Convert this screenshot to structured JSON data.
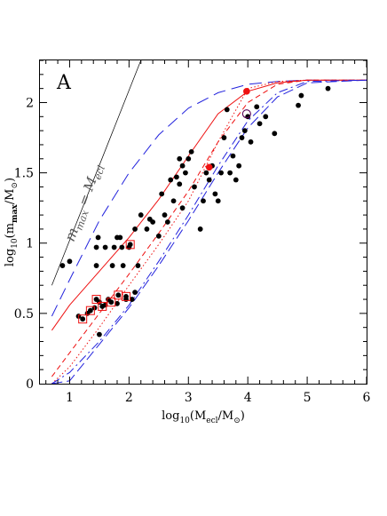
{
  "chart_data": {
    "type": "scatter",
    "panel_label": "A",
    "xlim": [
      0.5,
      6
    ],
    "ylim": [
      0,
      2.3
    ],
    "x_ticks": [
      1,
      2,
      3,
      4,
      5,
      6
    ],
    "y_ticks": [
      0,
      0.5,
      1,
      1.5,
      2
    ],
    "x_tick_labels": [
      "1",
      "2",
      "3",
      "4",
      "5",
      "6"
    ],
    "y_tick_labels": [
      "0",
      "0.5",
      "1",
      "1.5",
      "2"
    ],
    "xlabel": {
      "pre": "log",
      "sub1": "10",
      "mid": "(M",
      "sub2": "ecl",
      "post": "/M",
      "sun": "⊙",
      "close": ")"
    },
    "ylabel": {
      "pre": "log",
      "sub1": "10",
      "mid": "(m",
      "sub2": "max",
      "post": "/M",
      "sun": "⊙",
      "close": ")"
    },
    "annotation": {
      "main": "m",
      "sub1": "max",
      "eq": " = M",
      "sub2": "ecl",
      "x": 1.2,
      "y": 1.42
    },
    "colors": {
      "blue": "#2222dd",
      "red": "#ee1111",
      "black": "#000000",
      "ann": "#555555"
    },
    "points": [
      [
        0.88,
        0.84
      ],
      [
        1.0,
        0.87
      ],
      [
        1.15,
        0.48
      ],
      [
        1.22,
        0.46
      ],
      [
        1.3,
        0.5
      ],
      [
        1.35,
        0.52
      ],
      [
        1.42,
        0.54
      ],
      [
        1.45,
        0.6
      ],
      [
        1.5,
        0.35
      ],
      [
        1.45,
        0.84
      ],
      [
        1.45,
        0.97
      ],
      [
        1.48,
        1.04
      ],
      [
        1.5,
        0.58
      ],
      [
        1.55,
        0.55
      ],
      [
        1.6,
        0.56
      ],
      [
        1.6,
        0.97
      ],
      [
        1.65,
        0.6
      ],
      [
        1.7,
        0.58
      ],
      [
        1.72,
        0.84
      ],
      [
        1.75,
        0.97
      ],
      [
        1.8,
        1.04
      ],
      [
        1.8,
        0.57
      ],
      [
        1.82,
        0.63
      ],
      [
        1.85,
        1.04
      ],
      [
        1.88,
        0.97
      ],
      [
        1.9,
        0.84
      ],
      [
        1.95,
        0.6
      ],
      [
        1.95,
        0.62
      ],
      [
        2.0,
        0.97
      ],
      [
        2.02,
        0.99
      ],
      [
        2.05,
        0.6
      ],
      [
        2.1,
        0.65
      ],
      [
        2.15,
        0.84
      ],
      [
        2.1,
        1.1
      ],
      [
        2.2,
        1.2
      ],
      [
        2.3,
        1.1
      ],
      [
        2.35,
        1.17
      ],
      [
        2.4,
        1.15
      ],
      [
        2.5,
        1.05
      ],
      [
        2.55,
        1.35
      ],
      [
        2.6,
        1.2
      ],
      [
        2.65,
        1.15
      ],
      [
        2.7,
        1.45
      ],
      [
        2.75,
        1.3
      ],
      [
        2.8,
        1.47
      ],
      [
        2.85,
        1.42
      ],
      [
        2.85,
        1.6
      ],
      [
        2.9,
        1.55
      ],
      [
        2.9,
        1.25
      ],
      [
        2.95,
        1.5
      ],
      [
        3.0,
        1.6
      ],
      [
        3.05,
        1.65
      ],
      [
        3.1,
        1.4
      ],
      [
        3.2,
        1.1
      ],
      [
        3.25,
        1.3
      ],
      [
        3.3,
        1.5
      ],
      [
        3.35,
        1.45
      ],
      [
        3.4,
        1.55
      ],
      [
        3.45,
        1.35
      ],
      [
        3.5,
        1.3
      ],
      [
        3.55,
        1.5
      ],
      [
        3.6,
        1.75
      ],
      [
        3.65,
        1.95
      ],
      [
        3.7,
        1.5
      ],
      [
        3.75,
        1.62
      ],
      [
        3.8,
        1.45
      ],
      [
        3.85,
        1.55
      ],
      [
        3.9,
        1.75
      ],
      [
        3.95,
        1.8
      ],
      [
        4.0,
        1.9
      ],
      [
        4.05,
        1.72
      ],
      [
        4.15,
        1.97
      ],
      [
        4.2,
        1.85
      ],
      [
        4.3,
        1.9
      ],
      [
        4.45,
        1.78
      ],
      [
        4.85,
        1.98
      ],
      [
        4.9,
        2.05
      ],
      [
        5.35,
        2.1
      ]
    ],
    "boxed_points": [
      [
        1.22,
        0.46
      ],
      [
        1.35,
        0.52
      ],
      [
        1.45,
        0.6
      ],
      [
        1.55,
        0.55
      ],
      [
        1.7,
        0.58
      ],
      [
        1.82,
        0.63
      ],
      [
        1.95,
        0.62
      ],
      [
        2.02,
        0.99
      ]
    ],
    "red_points": [
      [
        3.35,
        1.54
      ],
      [
        3.98,
        2.08
      ]
    ],
    "open_circle": [
      3.98,
      1.92
    ],
    "series": [
      {
        "color": "#000000",
        "dash": "",
        "width": 0.7,
        "x": [
          0.7,
          2.2
        ],
        "y": [
          0.7,
          2.3
        ]
      },
      {
        "color": "#2222dd",
        "dash": "14,7",
        "width": 1,
        "x": [
          0.7,
          1.0,
          1.5,
          2.0,
          2.5,
          3.0,
          3.5,
          4.0,
          4.5,
          5.0,
          6.0
        ],
        "y": [
          0.48,
          0.74,
          1.16,
          1.5,
          1.77,
          1.96,
          2.07,
          2.13,
          2.15,
          2.16,
          2.16
        ]
      },
      {
        "color": "#ee1111",
        "dash": "",
        "width": 1,
        "x": [
          0.7,
          1.0,
          1.5,
          2.0,
          2.5,
          3.0,
          3.5,
          4.0,
          4.5,
          5.0,
          6.0
        ],
        "y": [
          0.38,
          0.56,
          0.8,
          1.04,
          1.31,
          1.62,
          1.92,
          2.08,
          2.14,
          2.16,
          2.16
        ]
      },
      {
        "color": "#ee1111",
        "dash": "1.5,2.5",
        "width": 1,
        "x": [
          0.7,
          1.0,
          1.5,
          2.0,
          2.5,
          3.0,
          3.5,
          4.0,
          4.5,
          5.0,
          6.0
        ],
        "y": [
          0.0,
          0.12,
          0.4,
          0.7,
          0.99,
          1.3,
          1.72,
          2.1,
          2.15,
          2.16,
          2.16
        ]
      },
      {
        "color": "#ee1111",
        "dash": "6,4",
        "width": 1,
        "x": [
          0.7,
          1.0,
          1.5,
          2.0,
          2.5,
          3.0,
          3.5,
          4.0,
          4.5,
          5.0,
          6.0
        ],
        "y": [
          0.05,
          0.22,
          0.5,
          0.78,
          1.07,
          1.37,
          1.72,
          2.0,
          2.13,
          2.16,
          2.16
        ]
      },
      {
        "color": "#2222dd",
        "dash": "10,4,2,4",
        "width": 1,
        "x": [
          0.7,
          1.0,
          1.5,
          2.0,
          2.5,
          3.0,
          3.5,
          4.0,
          4.5,
          5.0,
          6.0
        ],
        "y": [
          0.0,
          0.08,
          0.3,
          0.56,
          0.87,
          1.2,
          1.55,
          1.87,
          2.07,
          2.15,
          2.16
        ]
      },
      {
        "color": "#2222dd",
        "dash": "12,5",
        "width": 1,
        "x": [
          0.7,
          1.0,
          1.5,
          2.0,
          2.5,
          3.0,
          3.5,
          4.0,
          4.5,
          5.0,
          6.0
        ],
        "y": [
          0.0,
          0.02,
          0.28,
          0.54,
          0.84,
          1.16,
          1.5,
          1.82,
          2.04,
          2.14,
          2.16
        ]
      }
    ]
  }
}
